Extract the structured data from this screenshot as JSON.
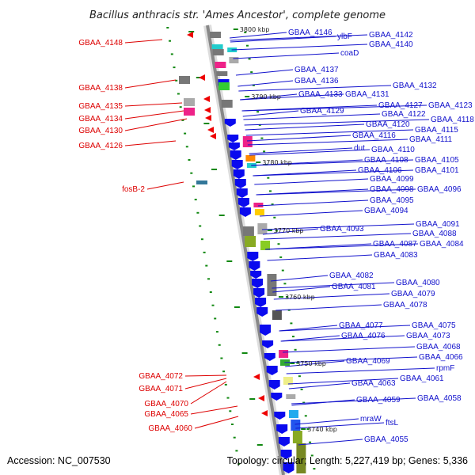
{
  "title": "Bacillus anthracis str. 'Ames Ancestor', complete genome",
  "footer": {
    "accession": "Accession: NC_007530",
    "topology": "Topology: circular; Length: 5,227,419 bp; Genes: 5,336"
  },
  "colors": {
    "backbone": "#888888",
    "forward_gene": "#0a0aee",
    "reverse_gene": "#ee0000",
    "left_label": "#dd0000",
    "right_label": "#1111cc",
    "tick": "#118811"
  },
  "kbp_marks": [
    "3800 kbp",
    "3790 kbp",
    "3780 kbp",
    "3770 kbp",
    "3760 kbp",
    "3750 kbp",
    "3740 kbp"
  ],
  "left_labels": [
    "GBAA_4148",
    "GBAA_4138",
    "GBAA_4135",
    "GBAA_4134",
    "GBAA_4130",
    "GBAA_4126",
    "fosB-2",
    "GBAA_4072",
    "GBAA_4071",
    "GBAA_4070",
    "GBAA_4065",
    "GBAA_4060"
  ],
  "right_labels": [
    "GBAA_4146",
    "ylbF",
    "GBAA_4142",
    "GBAA_4140",
    "coaD",
    "GBAA_4137",
    "GBAA_4136",
    "GBAA_4133",
    "GBAA_4131",
    "GBAA_4132",
    "GBAA_4129",
    "GBAA_4127",
    "GBAA_4123",
    "GBAA_4122",
    "GBAA_4118",
    "GBAA_4120",
    "GBAA_4115",
    "GBAA_4116",
    "GBAA_4111",
    "dut",
    "GBAA_4110",
    "GBAA_4108",
    "GBAA_4105",
    "GBAA_4106",
    "GBAA_4101",
    "GBAA_4099",
    "GBAA_4098",
    "GBAA_4096",
    "GBAA_4095",
    "GBAA_4094",
    "GBAA_4093",
    "GBAA_4091",
    "GBAA_4088",
    "GBAA_4087",
    "GBAA_4084",
    "GBAA_4083",
    "GBAA_4082",
    "GBAA_4081",
    "GBAA_4080",
    "GBAA_4079",
    "GBAA_4078",
    "GBAA_4077",
    "GBAA_4075",
    "GBAA_4076",
    "GBAA_4073",
    "GBAA_4068",
    "GBAA_4069",
    "GBAA_4066",
    "rpmF",
    "GBAA_4061",
    "GBAA_4063",
    "GBAA_4059",
    "GBAA_4058",
    "mraW",
    "ftsL",
    "GBAA_4055"
  ]
}
